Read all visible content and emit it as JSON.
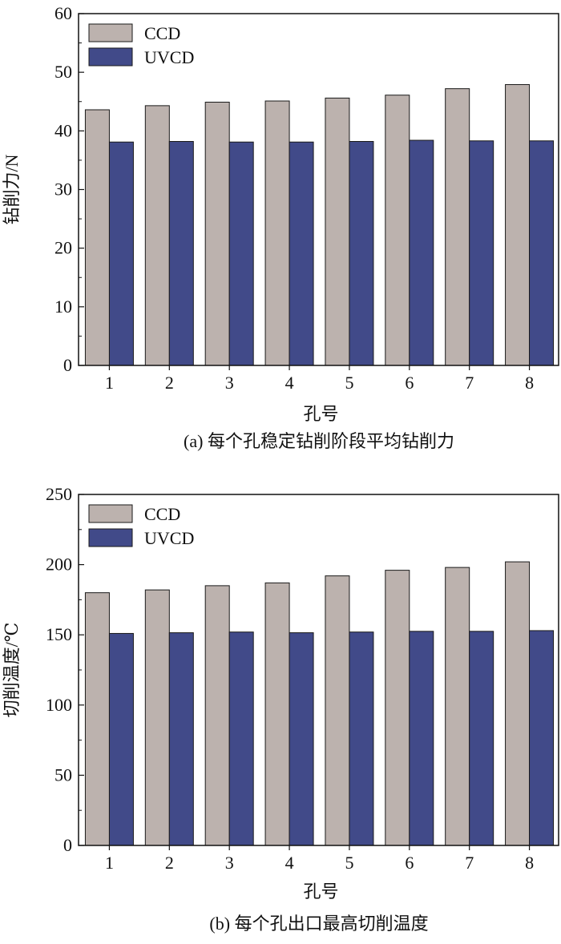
{
  "chart_data": [
    {
      "type": "bar",
      "caption": "(a) 每个孔稳定钻削阶段平均钻削力",
      "xlabel": "孔号",
      "ylabel": "钻削力/N",
      "categories": [
        "1",
        "2",
        "3",
        "4",
        "5",
        "6",
        "7",
        "8"
      ],
      "ylim": [
        0,
        60
      ],
      "yticks": [
        "0",
        "10",
        "20",
        "30",
        "40",
        "50",
        "60"
      ],
      "series": [
        {
          "name": "CCD",
          "color": "#bcb2ae",
          "values": [
            43.6,
            44.3,
            44.9,
            45.1,
            45.6,
            46.1,
            47.2,
            47.9
          ]
        },
        {
          "name": "UVCD",
          "color": "#414a89",
          "values": [
            38.1,
            38.2,
            38.1,
            38.1,
            38.2,
            38.4,
            38.3,
            38.3
          ]
        }
      ],
      "legend": "top-left",
      "grid": false
    },
    {
      "type": "bar",
      "caption": "(b) 每个孔出口最高切削温度",
      "xlabel": "孔号",
      "ylabel": "切削温度/℃",
      "categories": [
        "1",
        "2",
        "3",
        "4",
        "5",
        "6",
        "7",
        "8"
      ],
      "ylim": [
        0,
        250
      ],
      "yticks": [
        "0",
        "50",
        "100",
        "150",
        "200",
        "250"
      ],
      "series": [
        {
          "name": "CCD",
          "color": "#bcb2ae",
          "values": [
            180,
            182,
            185,
            187,
            192,
            196,
            198,
            202
          ]
        },
        {
          "name": "UVCD",
          "color": "#414a89",
          "values": [
            151,
            151.5,
            152,
            151.5,
            152,
            152.5,
            152.5,
            153
          ]
        }
      ],
      "legend": "top-left",
      "grid": false
    }
  ]
}
